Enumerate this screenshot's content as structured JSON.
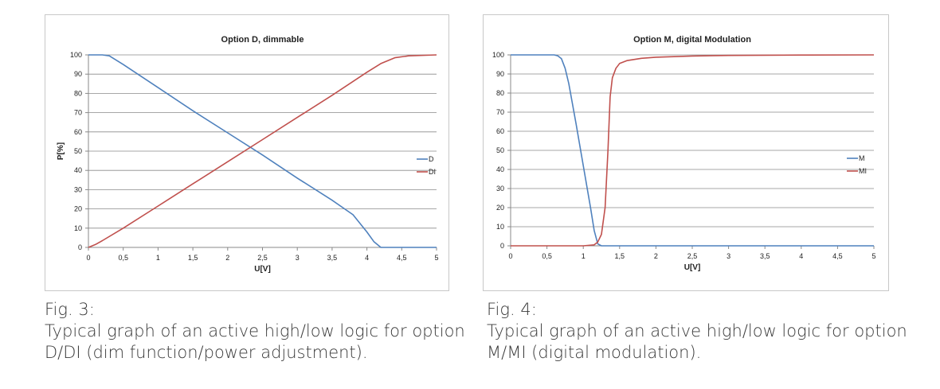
{
  "chart_data": [
    {
      "type": "line",
      "title": "Option D, dimmable",
      "xlabel": "U[V]",
      "ylabel": "P[%]",
      "xlim": [
        0,
        5
      ],
      "ylim": [
        0,
        100
      ],
      "x_ticks": [
        "0",
        "0,5",
        "1",
        "1,5",
        "2",
        "2,5",
        "3",
        "3,5",
        "4",
        "4,5",
        "5"
      ],
      "y_ticks": [
        "0",
        "10",
        "20",
        "30",
        "40",
        "50",
        "60",
        "70",
        "80",
        "90",
        "100"
      ],
      "legend_position": "right",
      "series": [
        {
          "name": "D",
          "color": "#4f81bd",
          "x": [
            0,
            0.1,
            0.2,
            0.3,
            0.5,
            1.0,
            1.5,
            2.0,
            2.5,
            3.0,
            3.5,
            3.8,
            4.0,
            4.1,
            4.2,
            4.5,
            5.0
          ],
          "y": [
            100,
            100,
            100,
            99.5,
            95,
            83,
            71,
            59.5,
            48,
            36,
            24.5,
            17,
            8,
            3,
            0,
            0,
            0
          ]
        },
        {
          "name": "DI",
          "color": "#c0504d",
          "x": [
            0,
            0.1,
            0.2,
            0.5,
            1.0,
            1.5,
            2.0,
            2.5,
            3.0,
            3.5,
            4.0,
            4.2,
            4.4,
            4.6,
            5.0
          ],
          "y": [
            0,
            1.5,
            3.5,
            10,
            21.5,
            33,
            44.5,
            56,
            67.5,
            79,
            91,
            95.5,
            98.5,
            99.5,
            100
          ]
        }
      ]
    },
    {
      "type": "line",
      "title": "Option M, digital Modulation",
      "xlabel": "U[V]",
      "ylabel": "",
      "xlim": [
        0,
        5
      ],
      "ylim": [
        0,
        100
      ],
      "x_ticks": [
        "0",
        "0,5",
        "1",
        "1,5",
        "2",
        "2,5",
        "3",
        "3,5",
        "4",
        "4,5",
        "5"
      ],
      "y_ticks": [
        "0",
        "10",
        "20",
        "30",
        "40",
        "50",
        "60",
        "70",
        "80",
        "90",
        "100"
      ],
      "legend_position": "right",
      "series": [
        {
          "name": "M",
          "color": "#4f81bd",
          "x": [
            0,
            0.5,
            0.6,
            0.65,
            0.7,
            0.75,
            0.8,
            0.9,
            1.0,
            1.1,
            1.15,
            1.2,
            1.25,
            1.5,
            5.0
          ],
          "y": [
            100,
            100,
            100,
            99.5,
            98,
            93,
            85,
            64,
            42,
            20,
            8,
            1,
            0,
            0,
            0
          ]
        },
        {
          "name": "MI",
          "color": "#c0504d",
          "x": [
            0,
            1.0,
            1.15,
            1.2,
            1.25,
            1.3,
            1.34,
            1.37,
            1.4,
            1.45,
            1.5,
            1.6,
            1.8,
            2.0,
            2.5,
            3.0,
            4.0,
            5.0
          ],
          "y": [
            0,
            0,
            0.5,
            2,
            6,
            20,
            50,
            78,
            88,
            93,
            95.5,
            97,
            98.2,
            98.8,
            99.4,
            99.7,
            99.9,
            100
          ]
        }
      ]
    }
  ],
  "captions": [
    {
      "label": "Fig. 3:",
      "line1": "Typical graph of an active high/low logic for option",
      "line2": "D/DI (dim function/power adjustment)."
    },
    {
      "label": "Fig. 4:",
      "line1": "Typical graph of an active high/low logic for option",
      "line2": "M/MI (digital modulation)."
    }
  ]
}
